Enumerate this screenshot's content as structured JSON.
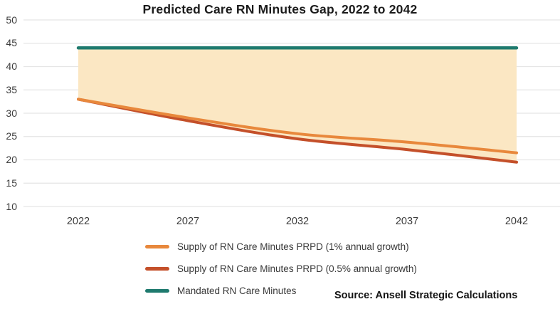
{
  "title": "Predicted Care RN Minutes Gap, 2022 to 2042",
  "source": "Source: Ansell Strategic Calculations",
  "colors": {
    "supply_1pct": "#E8883C",
    "supply_05pct": "#C4502A",
    "mandated": "#1E7A6E",
    "gap_fill": "#FBE7C3",
    "gridline": "#E5E5E5",
    "title_text": "#1B1B1B",
    "axis_text": "#3C3C3C"
  },
  "chart_data": {
    "type": "line",
    "title": "Predicted Care RN Minutes Gap, 2022 to 2042",
    "x": [
      2022,
      2027,
      2032,
      2037,
      2042
    ],
    "series": [
      {
        "name": "Supply of RN Care Minutes PRPD (1% annual growth)",
        "color_key": "supply_1pct",
        "values": [
          33,
          29,
          25.6,
          23.8,
          21.5
        ]
      },
      {
        "name": "Supply of RN Care Minutes PRPD (0.5% annual growth)",
        "color_key": "supply_05pct",
        "values": [
          33,
          28.4,
          24.5,
          22.2,
          19.5
        ]
      },
      {
        "name": "Mandated RN Care Minutes",
        "color_key": "mandated",
        "values": [
          44,
          44,
          44,
          44,
          44
        ]
      }
    ],
    "y_ticks": [
      50,
      45,
      40,
      35,
      30,
      25,
      20,
      15,
      10
    ],
    "ylim": [
      10,
      50
    ],
    "xlabel": "",
    "ylabel": "",
    "grid": "horizontal",
    "area_between": [
      "supply_05pct",
      "mandated"
    ],
    "legend_position": "bottom-left"
  }
}
